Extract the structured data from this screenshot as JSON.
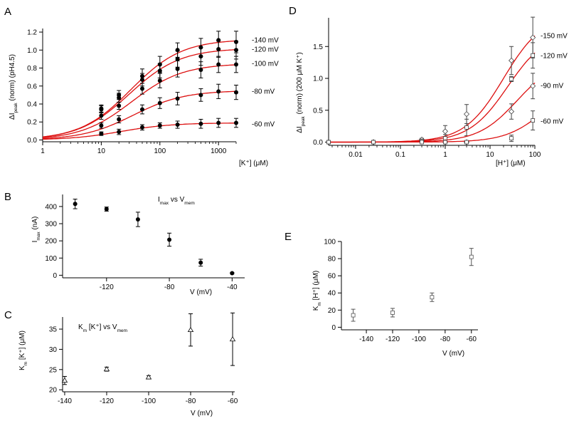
{
  "chart_data": [
    {
      "id": "A",
      "panel_label": "A",
      "type": "line",
      "xscale": "log",
      "xlim": [
        1,
        2000
      ],
      "ylim": [
        -0.02,
        1.24
      ],
      "xticks": [
        1,
        10,
        100,
        1000
      ],
      "xtick_labels": [
        "1",
        "10",
        "100",
        "1000"
      ],
      "yticks": [
        0,
        0.2,
        0.4,
        0.6,
        0.8,
        1.0,
        1.2
      ],
      "ytick_labels": [
        "0.0",
        "0.2",
        "0.4",
        "0.6",
        "0.8",
        "1.0",
        "1.2"
      ],
      "xlabel": "[K⁺] (μM)",
      "ylabel": {
        "main": "ΔI",
        "sub": "peak",
        "rest": " (norm)  (pH4.5)"
      },
      "marker": "circle",
      "x": [
        10,
        20,
        50,
        100,
        200,
        500,
        1000,
        2000
      ],
      "series": [
        {
          "name": "-140 mV",
          "vmax": 1.12,
          "km": 32,
          "h": 1,
          "values": [
            0.35,
            0.5,
            0.71,
            0.84,
            1.0,
            1.03,
            1.11,
            1.09
          ],
          "errors": [
            0.04,
            0.05,
            0.08,
            0.09,
            0.08,
            0.1,
            0.1,
            0.12
          ]
        },
        {
          "name": "-120 mV",
          "vmax": 1.02,
          "km": 30,
          "h": 1,
          "values": [
            0.34,
            0.47,
            0.67,
            0.77,
            0.9,
            0.93,
            1.01,
            1.0
          ],
          "errors": [
            0.04,
            0.05,
            0.07,
            0.08,
            0.09,
            0.1,
            0.09,
            0.1
          ]
        },
        {
          "name": "-100 mV",
          "vmax": 0.85,
          "km": 33,
          "h": 1,
          "values": [
            0.27,
            0.38,
            0.57,
            0.66,
            0.79,
            0.78,
            0.84,
            0.84
          ],
          "errors": [
            0.04,
            0.04,
            0.06,
            0.08,
            0.09,
            0.09,
            0.09,
            0.09
          ]
        },
        {
          "name": "-80 mV",
          "vmax": 0.55,
          "km": 35,
          "h": 1,
          "values": [
            0.16,
            0.23,
            0.34,
            0.41,
            0.46,
            0.5,
            0.54,
            0.53
          ],
          "errors": [
            0.03,
            0.04,
            0.05,
            0.06,
            0.07,
            0.07,
            0.08,
            0.08
          ]
        },
        {
          "name": "-60 mV",
          "vmax": 0.19,
          "km": 22,
          "h": 1,
          "values": [
            0.07,
            0.09,
            0.14,
            0.16,
            0.17,
            0.18,
            0.19,
            0.19
          ],
          "errors": [
            0.02,
            0.03,
            0.03,
            0.03,
            0.04,
            0.05,
            0.05,
            0.05
          ]
        }
      ]
    },
    {
      "id": "B",
      "panel_label": "B",
      "type": "scatter",
      "xlim": [
        -148,
        -32
      ],
      "ylim": [
        -15,
        470
      ],
      "xticks": [
        -120,
        -80,
        -40
      ],
      "xtick_labels": [
        "-120",
        "-80",
        "-40"
      ],
      "yticks": [
        0,
        100,
        200,
        300,
        400
      ],
      "ytick_labels": [
        "0",
        "100",
        "200",
        "300",
        "400"
      ],
      "xlabel": "V (mV)",
      "ylabel": {
        "main": "I",
        "sub": "max",
        "rest": " (nA)"
      },
      "title": {
        "main": "I",
        "sub": "max",
        "rest": " vs V",
        "sub2": "mem"
      },
      "marker": "circle",
      "x": [
        -140,
        -120,
        -100,
        -80,
        -60,
        -40
      ],
      "values": [
        415,
        385,
        325,
        207,
        73,
        12
      ],
      "errors": [
        28,
        12,
        42,
        38,
        20,
        4
      ]
    },
    {
      "id": "C",
      "panel_label": "C",
      "type": "scatter",
      "xlim": [
        -141,
        -59
      ],
      "ylim": [
        19.5,
        38
      ],
      "xticks": [
        -140,
        -120,
        -100,
        -80,
        -60
      ],
      "xtick_labels": [
        "-140",
        "-120",
        "-100",
        "-80",
        "-60"
      ],
      "yticks": [
        20,
        25,
        30,
        35
      ],
      "ytick_labels": [
        "20",
        "25",
        "30",
        "35"
      ],
      "xlabel": "V (mV)",
      "ylabel": {
        "main": "K",
        "sub": "m",
        "rest": " [K⁺] (μM)"
      },
      "title": {
        "main": "K",
        "sub": "m",
        "rest": " [K⁺] vs V",
        "sub2": "mem"
      },
      "marker": "triangle",
      "x": [
        -140,
        -120,
        -100,
        -80,
        -60
      ],
      "values": [
        22.3,
        25.1,
        23.1,
        34.8,
        32.5
      ],
      "errors": [
        1.0,
        0.5,
        0.4,
        4.0,
        6.5
      ]
    },
    {
      "id": "D",
      "panel_label": "D",
      "type": "line",
      "xscale": "log",
      "xlim": [
        0.0025,
        100
      ],
      "ylim": [
        -0.05,
        1.95
      ],
      "xticks": [
        0.01,
        0.1,
        1,
        10,
        100
      ],
      "xtick_labels": [
        "0.01",
        "0.1",
        "1",
        "10",
        "100"
      ],
      "yticks": [
        0,
        0.5,
        1.0,
        1.5
      ],
      "ytick_labels": [
        "0.0",
        "0.5",
        "1.0",
        "1.5"
      ],
      "xlabel": "[H⁺] (μM)",
      "ylabel": {
        "main": "ΔI",
        "sub": "peak",
        "rest": " (norm) (200 μM K⁺)"
      },
      "x": [
        0.0025,
        0.025,
        0.3,
        1,
        3,
        30,
        90
      ],
      "series": [
        {
          "name": "-150 mV",
          "marker": "diamond",
          "vmax": 2.0,
          "km": 20,
          "h": 1,
          "values": [
            0.0,
            0.0,
            0.04,
            0.17,
            0.44,
            1.28,
            1.64
          ],
          "errors": [
            0.01,
            0.01,
            0.02,
            0.09,
            0.15,
            0.22,
            0.32
          ]
        },
        {
          "name": "-120 mV",
          "marker": "square",
          "vmax": 1.75,
          "km": 25,
          "h": 1,
          "values": [
            0.0,
            0.0,
            0.02,
            0.06,
            0.23,
            0.99,
            1.36
          ],
          "errors": [
            0.01,
            0.01,
            0.01,
            0.06,
            0.13,
            0.04,
            0.2
          ]
        },
        {
          "name": "-90 mV",
          "marker": "diamond",
          "vmax": 1.3,
          "km": 40,
          "h": 1,
          "values": [
            0.0,
            0.0,
            0.01,
            0.0,
            0.0,
            0.48,
            0.88
          ],
          "errors": [
            0.01,
            0.01,
            0.01,
            0.01,
            0.02,
            0.12,
            0.2
          ]
        },
        {
          "name": "-60 mV",
          "marker": "square",
          "vmax": 1.0,
          "km": 170,
          "h": 1,
          "values": [
            0.0,
            0.0,
            0.0,
            0.0,
            0.0,
            0.06,
            0.34
          ],
          "errors": [
            0.01,
            0.01,
            0.01,
            0.01,
            0.01,
            0.05,
            0.15
          ]
        }
      ]
    },
    {
      "id": "E",
      "panel_label": "E",
      "type": "scatter",
      "xlim": [
        -159,
        -55
      ],
      "ylim": [
        -3,
        100
      ],
      "xticks": [
        -140,
        -120,
        -100,
        -80,
        -60
      ],
      "xtick_labels": [
        "-140",
        "-120",
        "-100",
        "-80",
        "-60"
      ],
      "yticks": [
        0,
        20,
        40,
        60,
        80,
        100
      ],
      "ytick_labels": [
        "0",
        "20",
        "40",
        "60",
        "80",
        "100"
      ],
      "xlabel": "V (mV)",
      "ylabel": {
        "main": "K",
        "sub": "m",
        "rest": " [H⁺] (μM)"
      },
      "marker": "square",
      "x": [
        -150,
        -120,
        -90,
        -60
      ],
      "values": [
        14,
        17,
        35,
        82
      ],
      "errors": [
        7,
        5,
        5,
        10
      ]
    }
  ]
}
